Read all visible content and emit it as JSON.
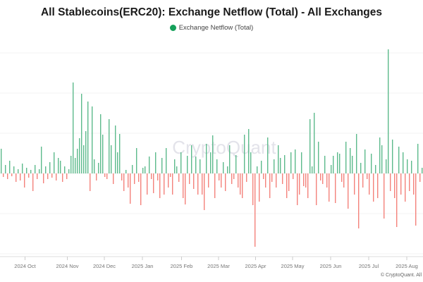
{
  "chart_data": {
    "type": "bar",
    "title": "All Stablecoins(ERC20): Exchange Netflow (Total) - All Exchanges",
    "legend": [
      {
        "name": "Exchange Netflow (Total)",
        "color": "#15a05a"
      }
    ],
    "legend_placement": "top-center",
    "watermark": "CryptoQuant",
    "credit": "© CryptoQuant. All",
    "xlabel": "",
    "ylabel": "",
    "y_unit": "relative (axis labels not shown)",
    "ylim": [
      -118,
      186
    ],
    "grid": true,
    "positive_color": "#5cba8c",
    "negative_color": "#f4827b",
    "x_ticks": [
      {
        "label": "2024 Oct",
        "index": 11.5
      },
      {
        "label": "2024 Nov",
        "index": 31.5
      },
      {
        "label": "2024 Dec",
        "index": 49
      },
      {
        "label": "2025 Jan",
        "index": 67
      },
      {
        "label": "2025 Feb",
        "index": 85.5
      },
      {
        "label": "2025 Mar",
        "index": 103
      },
      {
        "label": "2025 Apr",
        "index": 120.5
      },
      {
        "label": "2025 May",
        "index": 138
      },
      {
        "label": "2025 Jun",
        "index": 156
      },
      {
        "label": "2025 Jul",
        "index": 174
      },
      {
        "label": "2025 Aug",
        "index": 192
      }
    ],
    "values": [
      35,
      -5,
      12,
      -8,
      18,
      -4,
      10,
      -12,
      6,
      -10,
      14,
      -20,
      8,
      -6,
      5,
      -25,
      12,
      -8,
      6,
      38,
      -14,
      10,
      -8,
      16,
      -6,
      30,
      -10,
      22,
      18,
      -12,
      10,
      -8,
      6,
      25,
      129,
      22,
      35,
      50,
      113,
      40,
      60,
      102,
      -25,
      95,
      20,
      -10,
      15,
      84,
      55,
      -5,
      -8,
      77,
      40,
      -15,
      68,
      30,
      56,
      -10,
      -25,
      5,
      -20,
      -43,
      12,
      -15,
      36,
      -12,
      -45,
      8,
      10,
      -30,
      24,
      -8,
      -28,
      30,
      -10,
      -35,
      22,
      -30,
      36,
      -20,
      -5,
      -30,
      20,
      10,
      -12,
      30,
      -35,
      -44,
      25,
      -15,
      40,
      -22,
      24,
      -30,
      20,
      -30,
      -52,
      42,
      -20,
      30,
      54,
      -35,
      20,
      -10,
      -20,
      16,
      -25,
      10,
      40,
      -15,
      -8,
      26,
      -20,
      -30,
      -35,
      55,
      -12,
      63,
      30,
      -45,
      -104,
      10,
      -40,
      18,
      -8,
      -20,
      51,
      -35,
      -12,
      20,
      -20,
      40,
      22,
      -15,
      26,
      -35,
      -25,
      30,
      -8,
      34,
      -45,
      -30,
      30,
      -18,
      -20,
      -35,
      77,
      10,
      86,
      -45,
      45,
      -10,
      -15,
      25,
      -20,
      -40,
      12,
      25,
      -42,
      30,
      28,
      -12,
      -20,
      45,
      -50,
      36,
      25,
      -30,
      56,
      -78,
      15,
      -20,
      34,
      -8,
      -30,
      28,
      -40,
      12,
      -35,
      51,
      40,
      -64,
      20,
      176,
      -25,
      48,
      -35,
      -76,
      38,
      -30,
      30,
      -40,
      20,
      -25,
      18,
      -30,
      -74,
      42,
      -12,
      8
    ]
  }
}
